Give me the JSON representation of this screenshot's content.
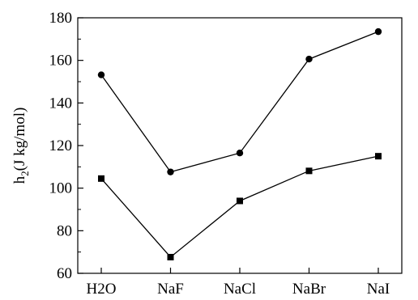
{
  "chart_data": {
    "type": "line",
    "title": "",
    "ylabel_main": "h",
    "ylabel_sub": "2",
    "ylabel_rest": "(J kg/mol)",
    "xlabel": "",
    "categories": [
      "H2O",
      "NaF",
      "NaCl",
      "NaBr",
      "NaI"
    ],
    "ylim": [
      60,
      180
    ],
    "yticks": [
      60,
      80,
      100,
      120,
      140,
      160,
      180
    ],
    "series": [
      {
        "marker": "circle",
        "color": "#000000",
        "values": [
          153.2,
          107.6,
          116.5,
          160.6,
          173.5
        ]
      },
      {
        "marker": "square",
        "color": "#000000",
        "values": [
          104.5,
          67.6,
          94.0,
          108.1,
          115.0
        ]
      }
    ],
    "grid": false,
    "legend": "none"
  }
}
